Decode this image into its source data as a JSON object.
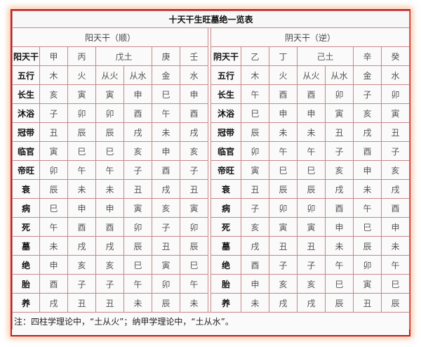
{
  "title": "十天干生旺墓绝一览表",
  "yang": {
    "subtitle": "阳天干（顺）",
    "header_label": "阳天干",
    "stems": [
      "甲",
      "丙",
      "戊土",
      "庚",
      "壬"
    ],
    "wuxing_label": "五行",
    "wuxing": [
      "木",
      "火",
      "从火",
      "从水",
      "金",
      "水"
    ],
    "rows": [
      {
        "label": "长生",
        "values": [
          "亥",
          "寅",
          "寅",
          "申",
          "巳",
          "申"
        ]
      },
      {
        "label": "沐浴",
        "values": [
          "子",
          "卯",
          "卯",
          "酉",
          "午",
          "酉"
        ]
      },
      {
        "label": "冠带",
        "values": [
          "丑",
          "辰",
          "辰",
          "戌",
          "未",
          "戌"
        ]
      },
      {
        "label": "临官",
        "values": [
          "寅",
          "巳",
          "巳",
          "亥",
          "申",
          "亥"
        ]
      },
      {
        "label": "帝旺",
        "values": [
          "卯",
          "午",
          "午",
          "子",
          "酉",
          "子"
        ]
      },
      {
        "label": "衰",
        "values": [
          "辰",
          "未",
          "未",
          "丑",
          "戌",
          "丑"
        ]
      },
      {
        "label": "病",
        "values": [
          "巳",
          "申",
          "申",
          "寅",
          "亥",
          "寅"
        ]
      },
      {
        "label": "死",
        "values": [
          "午",
          "酉",
          "酉",
          "卯",
          "子",
          "卯"
        ]
      },
      {
        "label": "墓",
        "values": [
          "未",
          "戌",
          "戌",
          "辰",
          "丑",
          "辰"
        ]
      },
      {
        "label": "绝",
        "values": [
          "申",
          "亥",
          "亥",
          "巳",
          "寅",
          "巳"
        ]
      },
      {
        "label": "胎",
        "values": [
          "酉",
          "子",
          "子",
          "午",
          "卯",
          "午"
        ]
      },
      {
        "label": "养",
        "values": [
          "戌",
          "丑",
          "丑",
          "未",
          "辰",
          "未"
        ]
      }
    ]
  },
  "yin": {
    "subtitle": "阴天干（逆）",
    "header_label": "阴天干",
    "stems": [
      "乙",
      "丁",
      "己土",
      "辛",
      "癸"
    ],
    "wuxing_label": "五行",
    "wuxing": [
      "木",
      "火",
      "从火",
      "从水",
      "金",
      "水"
    ],
    "rows": [
      {
        "label": "长生",
        "values": [
          "午",
          "酉",
          "酉",
          "卯",
          "子",
          "卯"
        ]
      },
      {
        "label": "沐浴",
        "values": [
          "巳",
          "申",
          "申",
          "寅",
          "亥",
          "寅"
        ]
      },
      {
        "label": "冠带",
        "values": [
          "辰",
          "未",
          "未",
          "丑",
          "戌",
          "丑"
        ]
      },
      {
        "label": "临官",
        "values": [
          "卯",
          "午",
          "午",
          "子",
          "酉",
          "子"
        ]
      },
      {
        "label": "帝旺",
        "values": [
          "寅",
          "巳",
          "巳",
          "亥",
          "申",
          "亥"
        ]
      },
      {
        "label": "衰",
        "values": [
          "丑",
          "辰",
          "辰",
          "戌",
          "未",
          "戌"
        ]
      },
      {
        "label": "病",
        "values": [
          "子",
          "卯",
          "卯",
          "酉",
          "午",
          "酉"
        ]
      },
      {
        "label": "死",
        "values": [
          "亥",
          "寅",
          "寅",
          "申",
          "巳",
          "申"
        ]
      },
      {
        "label": "墓",
        "values": [
          "戌",
          "丑",
          "丑",
          "未",
          "辰",
          "未"
        ]
      },
      {
        "label": "绝",
        "values": [
          "酉",
          "子",
          "子",
          "午",
          "卯",
          "午"
        ]
      },
      {
        "label": "胎",
        "values": [
          "申",
          "亥",
          "亥",
          "巳",
          "寅",
          "巳"
        ]
      },
      {
        "label": "养",
        "values": [
          "未",
          "戌",
          "戌",
          "辰",
          "丑",
          "辰"
        ]
      }
    ]
  },
  "note": "注：四柱学理论中，“土从火”；纳甲学理论中，“土从水”。",
  "colors": {
    "border": "#c8191e",
    "grid": "#c9868a"
  }
}
